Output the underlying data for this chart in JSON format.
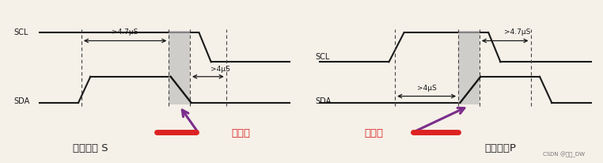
{
  "bg_color": "#f5f0e8",
  "line_color": "#1a1a1a",
  "dashed_color": "#444444",
  "gray_box_color": "#bbbbbb",
  "purple_arrow_color": "#7B2D8B",
  "red_bar_color": "#dd2222",
  "red_text_color": "#dd2222",
  "dark_text_color": "#222222",
  "left_panel": {
    "scl_label": "SCL",
    "sda_label": "SDA",
    "timing_label1": ">4.7μS",
    "timing_label2": ">4μS",
    "caption1": "起始信号 S",
    "caption2": "下降沿"
  },
  "right_panel": {
    "scl_label": "SCL",
    "sda_label": "SDA",
    "timing_label1": ">4.7μS",
    "timing_label2": ">4μS",
    "caption1": "上升沿",
    "caption2": "终止信号P"
  },
  "watermark": "CSDN @依点_DW"
}
